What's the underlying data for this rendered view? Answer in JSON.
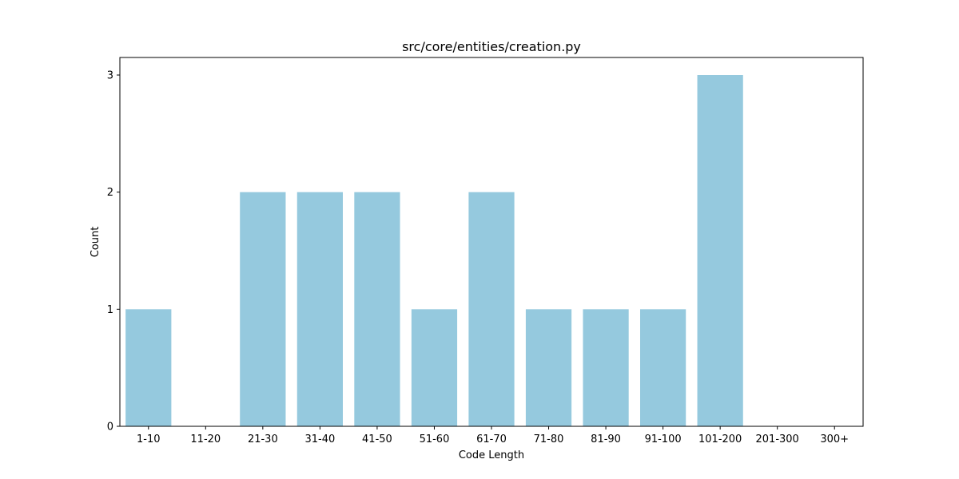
{
  "chart_data": {
    "type": "bar",
    "title": "src/core/entities/creation.py",
    "xlabel": "Code Length",
    "ylabel": "Count",
    "categories": [
      "1-10",
      "11-20",
      "21-30",
      "31-40",
      "41-50",
      "51-60",
      "61-70",
      "71-80",
      "81-90",
      "91-100",
      "101-200",
      "201-300",
      "300+"
    ],
    "values": [
      1,
      0,
      2,
      2,
      2,
      1,
      2,
      1,
      1,
      1,
      3,
      0,
      0
    ],
    "ylim": [
      0,
      3.15
    ],
    "yticks": [
      "0",
      "1",
      "2",
      "3"
    ],
    "bar_color": "#95c9de",
    "grid": false,
    "legend": "none"
  }
}
